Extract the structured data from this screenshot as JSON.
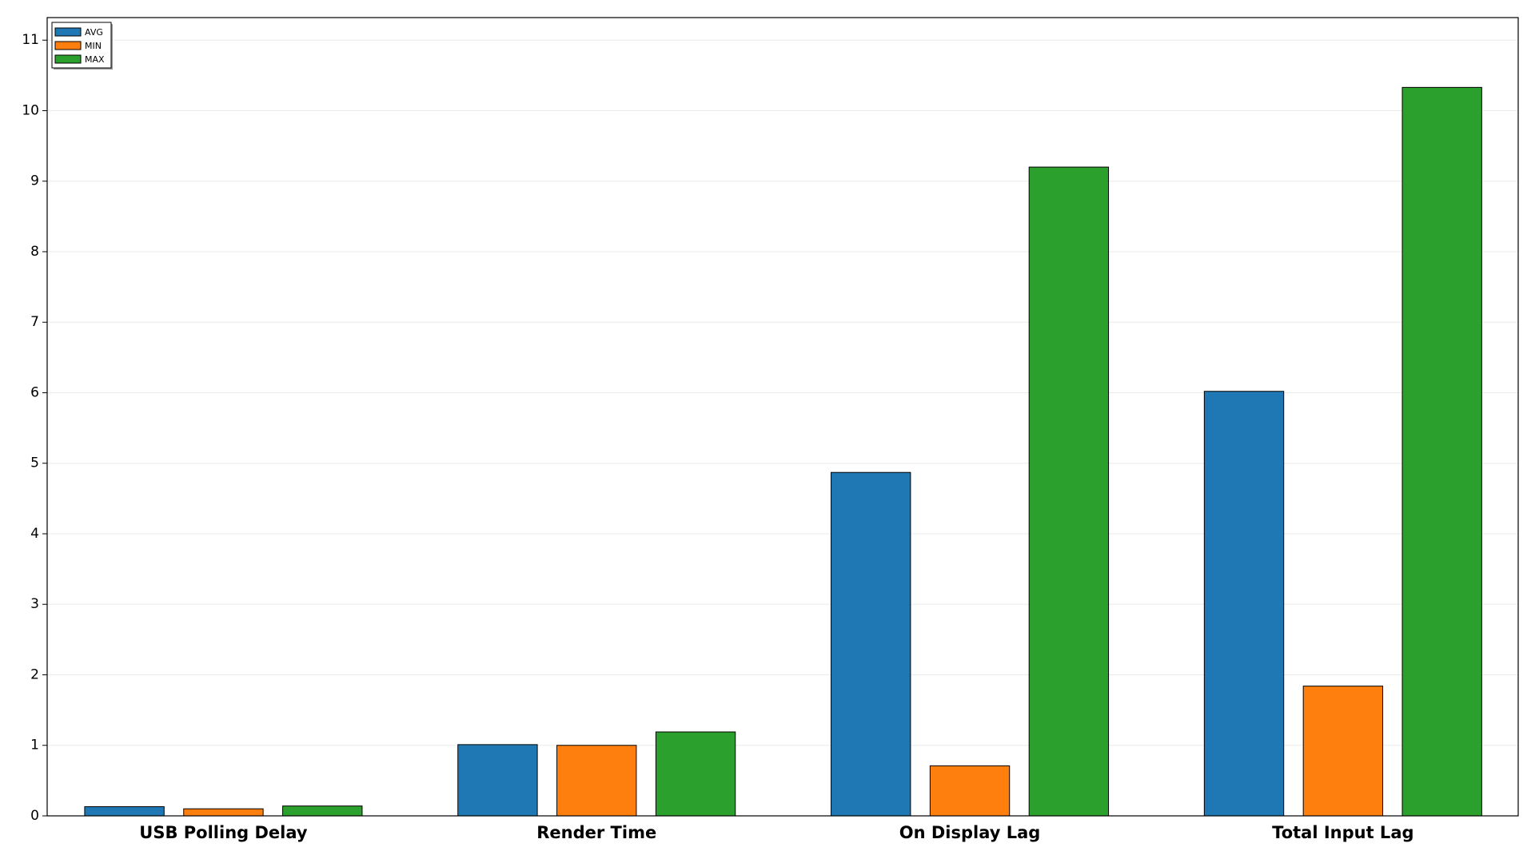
{
  "chart_data": {
    "type": "bar",
    "categories": [
      "USB Polling Delay",
      "Render Time",
      "On Display Lag",
      "Total Input Lag"
    ],
    "series": [
      {
        "name": "AVG",
        "color": "#1f77b4",
        "values": [
          0.13,
          1.01,
          4.87,
          6.02
        ]
      },
      {
        "name": "MIN",
        "color": "#ff7f0e",
        "values": [
          0.1,
          1.0,
          0.71,
          1.84
        ]
      },
      {
        "name": "MAX",
        "color": "#2ca02c",
        "values": [
          0.14,
          1.19,
          9.2,
          10.33
        ]
      }
    ],
    "ylim": [
      0,
      11.32
    ],
    "yticks": [
      0,
      1,
      2,
      3,
      4,
      5,
      6,
      7,
      8,
      9,
      10,
      11
    ],
    "grid": true,
    "legend": "upper-left"
  }
}
